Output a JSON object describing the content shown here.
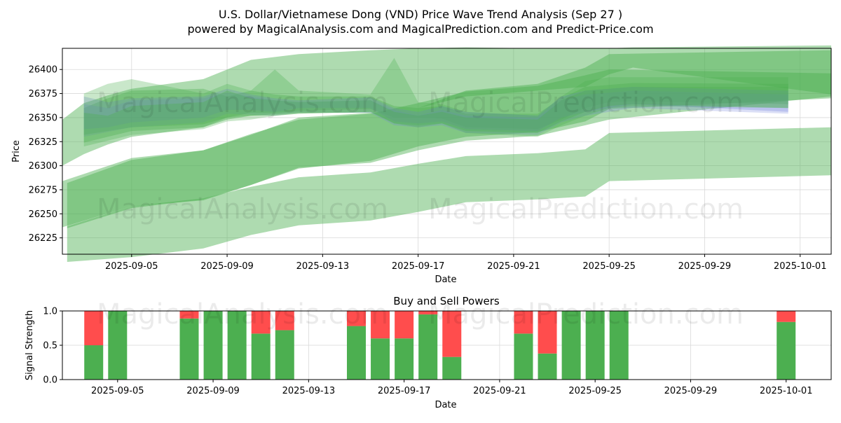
{
  "title": "U.S. Dollar/Vietnamese Dong (VND) Price Wave Trend Analysis (Sep 27 )",
  "subtitle": "powered by MagicalAnalysis.com and MagicalPrediction.com and Predict-Price.com",
  "watermarks": [
    "MagicalAnalysis.com",
    "MagicalPrediction.com"
  ],
  "colors": {
    "green_band": "#4caf50",
    "blue_band": "#6f7fdc",
    "buy": "#4caf50",
    "sell": "#ff4d4d",
    "grid": "#d9d9d9"
  },
  "chart_data": [
    {
      "type": "area",
      "name": "price-wave-trend",
      "xlabel": "Date",
      "ylabel": "Price",
      "xlim": [
        -0.9,
        31.3
      ],
      "ylim": [
        26208,
        26422
      ],
      "x_tick_days": [
        2,
        6,
        10,
        14,
        18,
        22,
        26,
        30
      ],
      "x_tick_labels": [
        "2025-09-05",
        "2025-09-09",
        "2025-09-13",
        "2025-09-17",
        "2025-09-21",
        "2025-09-25",
        "2025-09-29",
        "2025-10-01"
      ],
      "y_ticks": [
        26225,
        26250,
        26275,
        26300,
        26325,
        26350,
        26375,
        26400
      ],
      "y_tick_labels": [
        "26225",
        "26250",
        "26275",
        "26300",
        "26325",
        "26350",
        "26375",
        "26400"
      ],
      "x_dates": [
        "09-03",
        "09-04",
        "09-05",
        "09-08",
        "09-09",
        "09-10",
        "09-11",
        "09-12",
        "09-15",
        "09-16",
        "09-17",
        "09-18",
        "09-19",
        "09-22",
        "09-23",
        "09-24",
        "09-25",
        "09-26",
        "10-02"
      ],
      "day_index": [
        0,
        1,
        2,
        5,
        6,
        7,
        8,
        9,
        12,
        13,
        14,
        15,
        16,
        19,
        20,
        21,
        22,
        23,
        29.5
      ],
      "series": [
        {
          "name": "wide-top",
          "color": "green",
          "opacity": 0.45,
          "x": [
            -0.9,
            0,
            1,
            2,
            5,
            6,
            7,
            9,
            12,
            14,
            16,
            19,
            21,
            22,
            23,
            31.3
          ],
          "upper": [
            26348,
            26365,
            26373,
            26380,
            26390,
            26400,
            26410,
            26416,
            26420,
            26422,
            26423,
            26422,
            26422,
            26422,
            26423,
            26425
          ],
          "lower": [
            26300,
            26312,
            26322,
            26330,
            26340,
            26348,
            26352,
            26355,
            26355,
            26360,
            26372,
            26378,
            26382,
            26395,
            26402,
            26374
          ]
        },
        {
          "name": "mid-band",
          "color": "green",
          "opacity": 0.45,
          "x": [
            -0.9,
            2,
            5,
            7,
            9,
            12,
            14,
            16,
            19,
            21,
            22,
            31.3
          ],
          "upper": [
            26284,
            26308,
            26316,
            26332,
            26350,
            26355,
            26360,
            26378,
            26385,
            26402,
            26416,
            26420
          ],
          "lower": [
            26236,
            26258,
            26264,
            26280,
            26297,
            26305,
            26320,
            26330,
            26335,
            26346,
            26359,
            26370
          ]
        },
        {
          "name": "low-band-1",
          "color": "green",
          "opacity": 0.45,
          "x": [
            -0.7,
            2,
            5,
            7,
            9,
            12,
            14,
            16,
            19,
            21,
            22,
            31.3
          ],
          "upper": [
            26282,
            26306,
            26316,
            26333,
            26348,
            26354,
            26365,
            26377,
            26383,
            26394,
            26400,
            26396
          ],
          "lower": [
            26235,
            26256,
            26265,
            26280,
            26298,
            26303,
            26316,
            26326,
            26331,
            26342,
            26348,
            26372
          ]
        },
        {
          "name": "low-band-2",
          "color": "green",
          "opacity": 0.45,
          "x": [
            -0.7,
            2,
            5,
            7,
            9,
            12,
            14,
            16,
            19,
            21,
            22,
            31.3
          ],
          "upper": [
            26237,
            26258,
            26266,
            26278,
            26288,
            26293,
            26302,
            26310,
            26313,
            26317,
            26334,
            26340
          ],
          "lower": [
            26200,
            26205,
            26214,
            26228,
            26238,
            26243,
            26252,
            26262,
            26265,
            26268,
            26284,
            26290
          ]
        },
        {
          "name": "core-1",
          "color": "green",
          "opacity": 0.35,
          "x": [
            0,
            1,
            2,
            5,
            6,
            7,
            8,
            9,
            12,
            13,
            14,
            15,
            16,
            19,
            20,
            21,
            22,
            23,
            29.5
          ],
          "upper": [
            26360,
            26370,
            26378,
            26380,
            26372,
            26378,
            26374,
            26372,
            26372,
            26362,
            26360,
            26362,
            26354,
            26354,
            26370,
            26382,
            26384,
            26386,
            26385
          ],
          "lower": [
            26332,
            26336,
            26340,
            26343,
            26350,
            26355,
            26355,
            26357,
            26359,
            26350,
            26350,
            26349,
            26340,
            26338,
            26348,
            26360,
            26366,
            26367,
            26364
          ]
        },
        {
          "name": "core-2",
          "color": "blue",
          "opacity": 0.3,
          "x": [
            0,
            1,
            2,
            5,
            6,
            7,
            8,
            9,
            12,
            13,
            14,
            15,
            16,
            19,
            20,
            21,
            22,
            23,
            29.5
          ],
          "upper": [
            26372,
            26366,
            26370,
            26372,
            26380,
            26374,
            26370,
            26368,
            26371,
            26360,
            26356,
            26362,
            26356,
            26352,
            26372,
            26378,
            26380,
            26382,
            26378
          ],
          "lower": [
            26338,
            26340,
            26345,
            26350,
            26358,
            26358,
            26356,
            26360,
            26360,
            26346,
            26344,
            26346,
            26338,
            26336,
            26350,
            26356,
            26360,
            26364,
            26356
          ]
        },
        {
          "name": "core-3",
          "color": "blue",
          "opacity": 0.25,
          "x": [
            0,
            1,
            2,
            5,
            6,
            7,
            8,
            9,
            12,
            13,
            14,
            15,
            16,
            19,
            20,
            21,
            22,
            23,
            29.5
          ],
          "upper": [
            26364,
            26360,
            26368,
            26370,
            26376,
            26372,
            26368,
            26366,
            26368,
            26358,
            26352,
            26358,
            26352,
            26350,
            26368,
            26374,
            26376,
            26378,
            26374
          ],
          "lower": [
            26330,
            26335,
            26340,
            26345,
            26354,
            26353,
            26352,
            26355,
            26355,
            26342,
            26340,
            26342,
            26334,
            26332,
            26345,
            26352,
            26356,
            26360,
            26354
          ]
        },
        {
          "name": "core-4",
          "color": "green",
          "opacity": 0.35,
          "x": [
            0,
            1,
            2,
            5,
            6,
            7,
            8,
            9,
            12,
            13,
            14,
            15,
            16,
            19,
            20,
            21,
            22,
            23,
            29.5
          ],
          "upper": [
            26355,
            26352,
            26362,
            26366,
            26378,
            26370,
            26368,
            26366,
            26368,
            26356,
            26352,
            26356,
            26350,
            26348,
            26368,
            26378,
            26380,
            26382,
            26382
          ],
          "lower": [
            26324,
            26330,
            26336,
            26340,
            26350,
            26352,
            26352,
            26354,
            26356,
            26344,
            26340,
            26344,
            26336,
            26334,
            26346,
            26356,
            26362,
            26364,
            26360
          ]
        },
        {
          "name": "core-5",
          "color": "green",
          "opacity": 0.3,
          "x": [
            0,
            1,
            2,
            5,
            6,
            7,
            8,
            9,
            12,
            13,
            14,
            15,
            16,
            19,
            20,
            21,
            22,
            23,
            29.5
          ],
          "upper": [
            26375,
            26385,
            26390,
            26375,
            26385,
            26378,
            26400,
            26378,
            26374,
            26412,
            26366,
            26364,
            26356,
            26352,
            26372,
            26388,
            26392,
            26392,
            26392
          ],
          "lower": [
            26320,
            26326,
            26332,
            26338,
            26346,
            26348,
            26352,
            26354,
            26356,
            26344,
            26342,
            26344,
            26334,
            26330,
            26342,
            26352,
            26360,
            26362,
            26360
          ]
        }
      ]
    },
    {
      "type": "bar",
      "name": "buy-sell-powers",
      "title": "Buy and Sell Powers",
      "xlabel": "Date",
      "ylabel": "Signal Strength",
      "xlim": [
        -0.9,
        31.3
      ],
      "ylim": [
        0,
        1
      ],
      "y_ticks": [
        0.0,
        0.5,
        1.0
      ],
      "y_tick_labels": [
        "0.0",
        "0.5",
        "1.0"
      ],
      "x_tick_days": [
        2,
        6,
        10,
        14,
        18,
        22,
        26,
        30
      ],
      "x_tick_labels": [
        "2025-09-05",
        "2025-09-09",
        "2025-09-13",
        "2025-09-17",
        "2025-09-21",
        "2025-09-25",
        "2025-09-29",
        "2025-10-01"
      ],
      "day_index": [
        1,
        2,
        5,
        6,
        7,
        8,
        9,
        12,
        13,
        14,
        15,
        16,
        19,
        20,
        21,
        22,
        23,
        30
      ],
      "series": [
        {
          "name": "Buy",
          "values": [
            0.5,
            1.0,
            0.89,
            1.0,
            1.0,
            0.67,
            0.72,
            0.78,
            0.6,
            0.6,
            0.95,
            0.33,
            0.67,
            0.38,
            1.0,
            1.0,
            1.0,
            0.84
          ]
        },
        {
          "name": "Sell",
          "values": [
            0.5,
            0.0,
            0.11,
            0.0,
            0.0,
            0.33,
            0.28,
            0.22,
            0.4,
            0.4,
            0.05,
            0.67,
            0.33,
            0.62,
            0.0,
            0.0,
            0.0,
            0.16
          ]
        }
      ]
    }
  ]
}
